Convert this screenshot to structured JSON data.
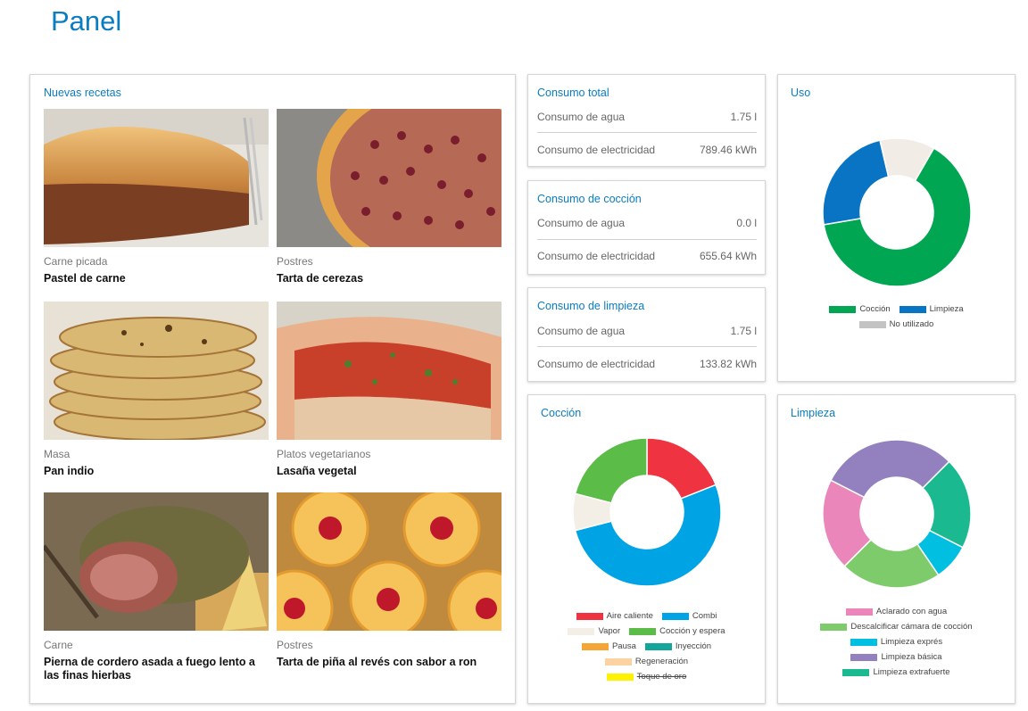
{
  "page": {
    "title": "Panel"
  },
  "recipes": {
    "title": "Nuevas recetas",
    "items": [
      {
        "category": "Carne picada",
        "name": "Pastel de carne"
      },
      {
        "category": "Postres",
        "name": "Tarta de cerezas"
      },
      {
        "category": "Masa",
        "name": "Pan indio"
      },
      {
        "category": "Platos vegetarianos",
        "name": "Lasaña vegetal"
      },
      {
        "category": "Carne",
        "name": "Pierna de cordero asada a fuego lento a las finas hierbas"
      },
      {
        "category": "Postres",
        "name": "Tarta de piña al revés con sabor a ron"
      }
    ]
  },
  "consumption": [
    {
      "title": "Consumo total",
      "water_label": "Consumo de agua",
      "water_value": "1.75 l",
      "elec_label": "Consumo de electricidad",
      "elec_value": "789.46 kWh"
    },
    {
      "title": "Consumo de cocción",
      "water_label": "Consumo de agua",
      "water_value": "0.0 l",
      "elec_label": "Consumo de electricidad",
      "elec_value": "655.64 kWh"
    },
    {
      "title": "Consumo de limpieza",
      "water_label": "Consumo de agua",
      "water_value": "1.75 l",
      "elec_label": "Consumo de electricidad",
      "elec_value": "133.82 kWh"
    }
  ],
  "uso": {
    "title": "Uso",
    "segments": [
      {
        "label": "Cocción",
        "value": 64,
        "color": "#00a651"
      },
      {
        "label": "Limpieza",
        "value": 24,
        "color": "#0a74c4"
      },
      {
        "label": "No utilizado",
        "value": 12,
        "color": "#f1ede6"
      }
    ],
    "legend_colors": {
      "Cocción": "#00a651",
      "Limpieza": "#0a74c4",
      "No utilizado": "#c3c3c3"
    }
  },
  "coccion": {
    "title": "Cocción",
    "segments": [
      {
        "label": "Aire caliente",
        "value": 19,
        "color": "#ef3340"
      },
      {
        "label": "Combi",
        "value": 52,
        "color": "#00a3e4"
      },
      {
        "label": "Vapor",
        "value": 8,
        "color": "#f3eee6"
      },
      {
        "label": "Cocción y espera",
        "value": 21,
        "color": "#5bbd47"
      }
    ],
    "legend": [
      {
        "label": "Aire caliente",
        "color": "#ef3340"
      },
      {
        "label": "Combi",
        "color": "#00a3e4"
      },
      {
        "label": "Vapor",
        "color": "#f3eee6"
      },
      {
        "label": "Cocción y espera",
        "color": "#5bbd47"
      },
      {
        "label": "Pausa",
        "color": "#f5a534"
      },
      {
        "label": "Inyección",
        "color": "#13a59c"
      },
      {
        "label": "Regeneración",
        "color": "#fcd3a0"
      },
      {
        "label": "Toque de oro",
        "color": "#fff200",
        "disabled": true
      }
    ]
  },
  "limpieza": {
    "title": "Limpieza",
    "segments": [
      {
        "label": "Limpieza extrafuerte",
        "value": 20,
        "color": "#1ab98f"
      },
      {
        "label": "Limpieza exprés",
        "value": 8,
        "color": "#00bfe0"
      },
      {
        "label": "Descalcificar cámara de cocción",
        "value": 22,
        "color": "#7ecb6c"
      },
      {
        "label": "Aclarado con agua",
        "value": 20,
        "color": "#ea86b9"
      },
      {
        "label": "Limpieza básica",
        "value": 30,
        "color": "#9380be"
      }
    ],
    "legend": [
      {
        "label": "Aclarado con agua",
        "color": "#ea86b9"
      },
      {
        "label": "Descalcificar cámara de cocción",
        "color": "#7ecb6c"
      },
      {
        "label": "Limpieza exprés",
        "color": "#00bfe0"
      },
      {
        "label": "Limpieza básica",
        "color": "#9380be"
      },
      {
        "label": "Limpieza extrafuerte",
        "color": "#1ab98f"
      }
    ]
  }
}
